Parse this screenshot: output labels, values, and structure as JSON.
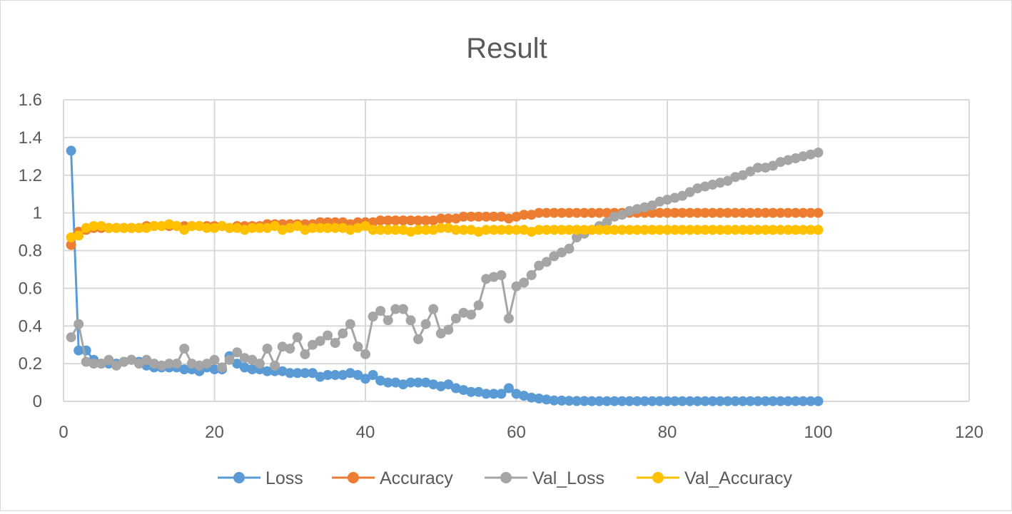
{
  "chart_data": {
    "type": "scatter",
    "title": "Result",
    "xlabel": "",
    "ylabel": "",
    "xlim": [
      0,
      120
    ],
    "ylim": [
      0,
      1.6
    ],
    "xticks": [
      0,
      20,
      40,
      60,
      80,
      100,
      120
    ],
    "yticks": [
      0,
      0.2,
      0.4,
      0.6,
      0.8,
      1,
      1.2,
      1.4,
      1.6
    ],
    "grid": true,
    "legend_position": "bottom",
    "x": [
      1,
      2,
      3,
      4,
      5,
      6,
      7,
      8,
      9,
      10,
      11,
      12,
      13,
      14,
      15,
      16,
      17,
      18,
      19,
      20,
      21,
      22,
      23,
      24,
      25,
      26,
      27,
      28,
      29,
      30,
      31,
      32,
      33,
      34,
      35,
      36,
      37,
      38,
      39,
      40,
      41,
      42,
      43,
      44,
      45,
      46,
      47,
      48,
      49,
      50,
      51,
      52,
      53,
      54,
      55,
      56,
      57,
      58,
      59,
      60,
      61,
      62,
      63,
      64,
      65,
      66,
      67,
      68,
      69,
      70,
      71,
      72,
      73,
      74,
      75,
      76,
      77,
      78,
      79,
      80,
      81,
      82,
      83,
      84,
      85,
      86,
      87,
      88,
      89,
      90,
      91,
      92,
      93,
      94,
      95,
      96,
      97,
      98,
      99,
      100
    ],
    "series": [
      {
        "name": "Loss",
        "color": "#5b9bd5",
        "values": [
          1.33,
          0.27,
          0.27,
          0.22,
          0.2,
          0.2,
          0.2,
          0.21,
          0.22,
          0.21,
          0.19,
          0.18,
          0.18,
          0.18,
          0.18,
          0.17,
          0.17,
          0.16,
          0.18,
          0.17,
          0.17,
          0.24,
          0.2,
          0.18,
          0.17,
          0.17,
          0.16,
          0.16,
          0.16,
          0.15,
          0.15,
          0.15,
          0.15,
          0.13,
          0.14,
          0.14,
          0.14,
          0.15,
          0.14,
          0.12,
          0.14,
          0.11,
          0.1,
          0.1,
          0.09,
          0.1,
          0.1,
          0.1,
          0.09,
          0.08,
          0.09,
          0.07,
          0.06,
          0.05,
          0.05,
          0.04,
          0.04,
          0.04,
          0.07,
          0.04,
          0.03,
          0.02,
          0.015,
          0.01,
          0.005,
          0.004,
          0.003,
          0.002,
          0.002,
          0.001,
          0.001,
          0.001,
          0.001,
          0.001,
          0.001,
          0.001,
          0.001,
          0.001,
          0.001,
          0.001,
          0.001,
          0.001,
          0.001,
          0.001,
          0.001,
          0.001,
          0.001,
          0.001,
          0.001,
          0.001,
          0.001,
          0.001,
          0.001,
          0.001,
          0.001,
          0.001,
          0.001,
          0.001,
          0.001,
          0.001
        ]
      },
      {
        "name": "Accuracy",
        "color": "#ed7d31",
        "values": [
          0.83,
          0.9,
          0.91,
          0.92,
          0.92,
          0.92,
          0.92,
          0.92,
          0.92,
          0.92,
          0.93,
          0.93,
          0.93,
          0.93,
          0.93,
          0.93,
          0.93,
          0.93,
          0.93,
          0.93,
          0.93,
          0.92,
          0.93,
          0.93,
          0.93,
          0.93,
          0.94,
          0.94,
          0.94,
          0.94,
          0.94,
          0.94,
          0.94,
          0.95,
          0.95,
          0.95,
          0.95,
          0.94,
          0.95,
          0.95,
          0.95,
          0.96,
          0.96,
          0.96,
          0.96,
          0.96,
          0.96,
          0.96,
          0.96,
          0.97,
          0.97,
          0.97,
          0.98,
          0.98,
          0.98,
          0.98,
          0.98,
          0.98,
          0.97,
          0.98,
          0.99,
          0.99,
          1.0,
          1.0,
          1.0,
          1.0,
          1.0,
          1.0,
          1.0,
          1.0,
          1.0,
          1.0,
          1.0,
          1.0,
          1.0,
          1.0,
          1.0,
          1.0,
          1.0,
          1.0,
          1.0,
          1.0,
          1.0,
          1.0,
          1.0,
          1.0,
          1.0,
          1.0,
          1.0,
          1.0,
          1.0,
          1.0,
          1.0,
          1.0,
          1.0,
          1.0,
          1.0,
          1.0,
          1.0,
          1.0
        ]
      },
      {
        "name": "Val_Loss",
        "color": "#a5a5a5",
        "values": [
          0.34,
          0.41,
          0.21,
          0.2,
          0.2,
          0.22,
          0.19,
          0.21,
          0.22,
          0.2,
          0.22,
          0.2,
          0.19,
          0.2,
          0.2,
          0.28,
          0.2,
          0.19,
          0.2,
          0.22,
          0.18,
          0.22,
          0.26,
          0.23,
          0.22,
          0.2,
          0.28,
          0.19,
          0.29,
          0.28,
          0.34,
          0.25,
          0.3,
          0.32,
          0.35,
          0.31,
          0.36,
          0.41,
          0.29,
          0.25,
          0.45,
          0.48,
          0.43,
          0.49,
          0.49,
          0.43,
          0.33,
          0.41,
          0.49,
          0.36,
          0.38,
          0.44,
          0.47,
          0.46,
          0.51,
          0.65,
          0.66,
          0.67,
          0.44,
          0.61,
          0.63,
          0.67,
          0.72,
          0.74,
          0.77,
          0.79,
          0.81,
          0.87,
          0.89,
          0.91,
          0.93,
          0.95,
          0.98,
          0.99,
          1.01,
          1.02,
          1.03,
          1.04,
          1.06,
          1.07,
          1.08,
          1.09,
          1.11,
          1.13,
          1.14,
          1.15,
          1.16,
          1.17,
          1.19,
          1.2,
          1.22,
          1.24,
          1.24,
          1.25,
          1.27,
          1.28,
          1.29,
          1.3,
          1.31,
          1.32
        ]
      },
      {
        "name": "Val_Accuracy",
        "color": "#ffc000",
        "values": [
          0.87,
          0.88,
          0.92,
          0.93,
          0.93,
          0.92,
          0.92,
          0.92,
          0.92,
          0.92,
          0.92,
          0.93,
          0.93,
          0.94,
          0.93,
          0.91,
          0.93,
          0.93,
          0.92,
          0.92,
          0.93,
          0.92,
          0.92,
          0.91,
          0.92,
          0.92,
          0.92,
          0.93,
          0.91,
          0.92,
          0.93,
          0.91,
          0.92,
          0.92,
          0.92,
          0.92,
          0.92,
          0.91,
          0.92,
          0.93,
          0.91,
          0.91,
          0.91,
          0.91,
          0.91,
          0.9,
          0.91,
          0.91,
          0.91,
          0.92,
          0.92,
          0.91,
          0.91,
          0.91,
          0.9,
          0.91,
          0.91,
          0.91,
          0.91,
          0.91,
          0.91,
          0.9,
          0.91,
          0.91,
          0.91,
          0.91,
          0.91,
          0.91,
          0.91,
          0.91,
          0.91,
          0.91,
          0.91,
          0.91,
          0.91,
          0.91,
          0.91,
          0.91,
          0.91,
          0.91,
          0.91,
          0.91,
          0.91,
          0.91,
          0.91,
          0.91,
          0.91,
          0.91,
          0.91,
          0.91,
          0.91,
          0.91,
          0.91,
          0.91,
          0.91,
          0.91,
          0.91,
          0.91,
          0.91,
          0.91
        ]
      }
    ]
  }
}
